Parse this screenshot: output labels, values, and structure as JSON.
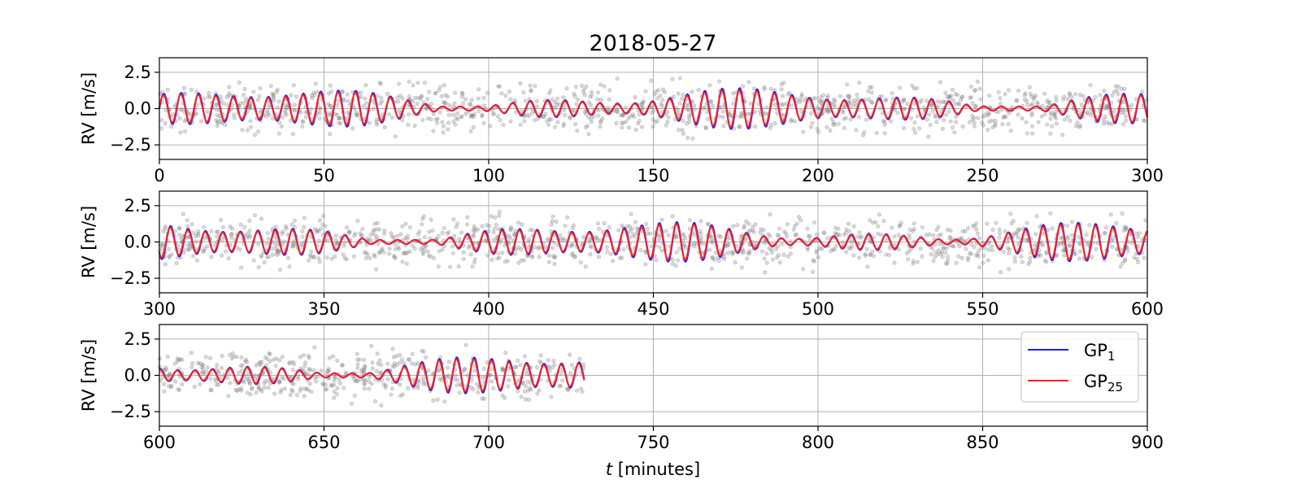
{
  "figure_title": "2018-05-27",
  "ylabel": "RV [m/s]",
  "xlabel_var": "t",
  "xlabel_units": " [minutes]",
  "legend": {
    "placement": "right",
    "entries": [
      {
        "base": "GP",
        "sub": "1",
        "color": "#1f1fff"
      },
      {
        "base": "GP",
        "sub": "25",
        "color": "#ff2020"
      }
    ]
  },
  "colors": {
    "gp1": "#1f1fff",
    "gp25": "#ff2020",
    "data_points": "#808080",
    "grid": "#b0b0b0"
  },
  "chart_data": [
    {
      "type": "line",
      "panel": "top",
      "xlim": [
        0,
        300
      ],
      "ylim": [
        -3.5,
        3.5
      ],
      "xticks": [
        0,
        50,
        100,
        150,
        200,
        250,
        300
      ],
      "yticks": [
        -2.5,
        0.0,
        2.5
      ],
      "xtick_labels": [
        "0",
        "50",
        "100",
        "150",
        "200",
        "250",
        "300"
      ],
      "ytick_labels": [
        "−2.5",
        "0.0",
        "2.5"
      ],
      "grid": true,
      "series": [
        {
          "name": "GP1",
          "x_range": [
            0,
            300
          ],
          "oscillation_period_min": 5.3,
          "typical_amplitude": 1.0,
          "peak_amplitude": 2.0
        },
        {
          "name": "GP25",
          "x_range": [
            0,
            300
          ],
          "oscillation_period_min": 5.3,
          "typical_amplitude": 0.9,
          "peak_amplitude": 1.8
        }
      ],
      "scatter_points": {
        "x_range": [
          0,
          300
        ],
        "y_spread": [
          -3.0,
          3.0
        ]
      }
    },
    {
      "type": "line",
      "panel": "middle",
      "xlim": [
        300,
        600
      ],
      "ylim": [
        -3.5,
        3.5
      ],
      "xticks": [
        300,
        350,
        400,
        450,
        500,
        550,
        600
      ],
      "yticks": [
        -2.5,
        0.0,
        2.5
      ],
      "xtick_labels": [
        "300",
        "350",
        "400",
        "450",
        "500",
        "550",
        "600"
      ],
      "ytick_labels": [
        "−2.5",
        "0.0",
        "2.5"
      ],
      "grid": true,
      "series": [
        {
          "name": "GP1",
          "x_range": [
            300,
            600
          ],
          "oscillation_period_min": 5.3,
          "typical_amplitude": 1.0,
          "peak_amplitude": 2.4
        },
        {
          "name": "GP25",
          "x_range": [
            300,
            600
          ],
          "oscillation_period_min": 5.3,
          "typical_amplitude": 0.9,
          "peak_amplitude": 2.1
        }
      ],
      "scatter_points": {
        "x_range": [
          300,
          600
        ],
        "y_spread": [
          -3.0,
          3.0
        ]
      }
    },
    {
      "type": "line",
      "panel": "bottom",
      "xlim": [
        600,
        900
      ],
      "ylim": [
        -3.5,
        3.5
      ],
      "xticks": [
        600,
        650,
        700,
        750,
        800,
        850,
        900
      ],
      "yticks": [
        -2.5,
        0.0,
        2.5
      ],
      "xtick_labels": [
        "600",
        "650",
        "700",
        "750",
        "800",
        "850",
        "900"
      ],
      "ytick_labels": [
        "−2.5",
        "0.0",
        "2.5"
      ],
      "grid": true,
      "series": [
        {
          "name": "GP1",
          "x_range": [
            600,
            729
          ],
          "oscillation_period_min": 5.3,
          "typical_amplitude": 1.0,
          "peak_amplitude": 2.4
        },
        {
          "name": "GP25",
          "x_range": [
            600,
            729
          ],
          "oscillation_period_min": 5.3,
          "typical_amplitude": 0.9,
          "peak_amplitude": 2.0
        }
      ],
      "scatter_points": {
        "x_range": [
          600,
          729
        ],
        "y_spread": [
          -3.0,
          3.0
        ]
      }
    }
  ]
}
